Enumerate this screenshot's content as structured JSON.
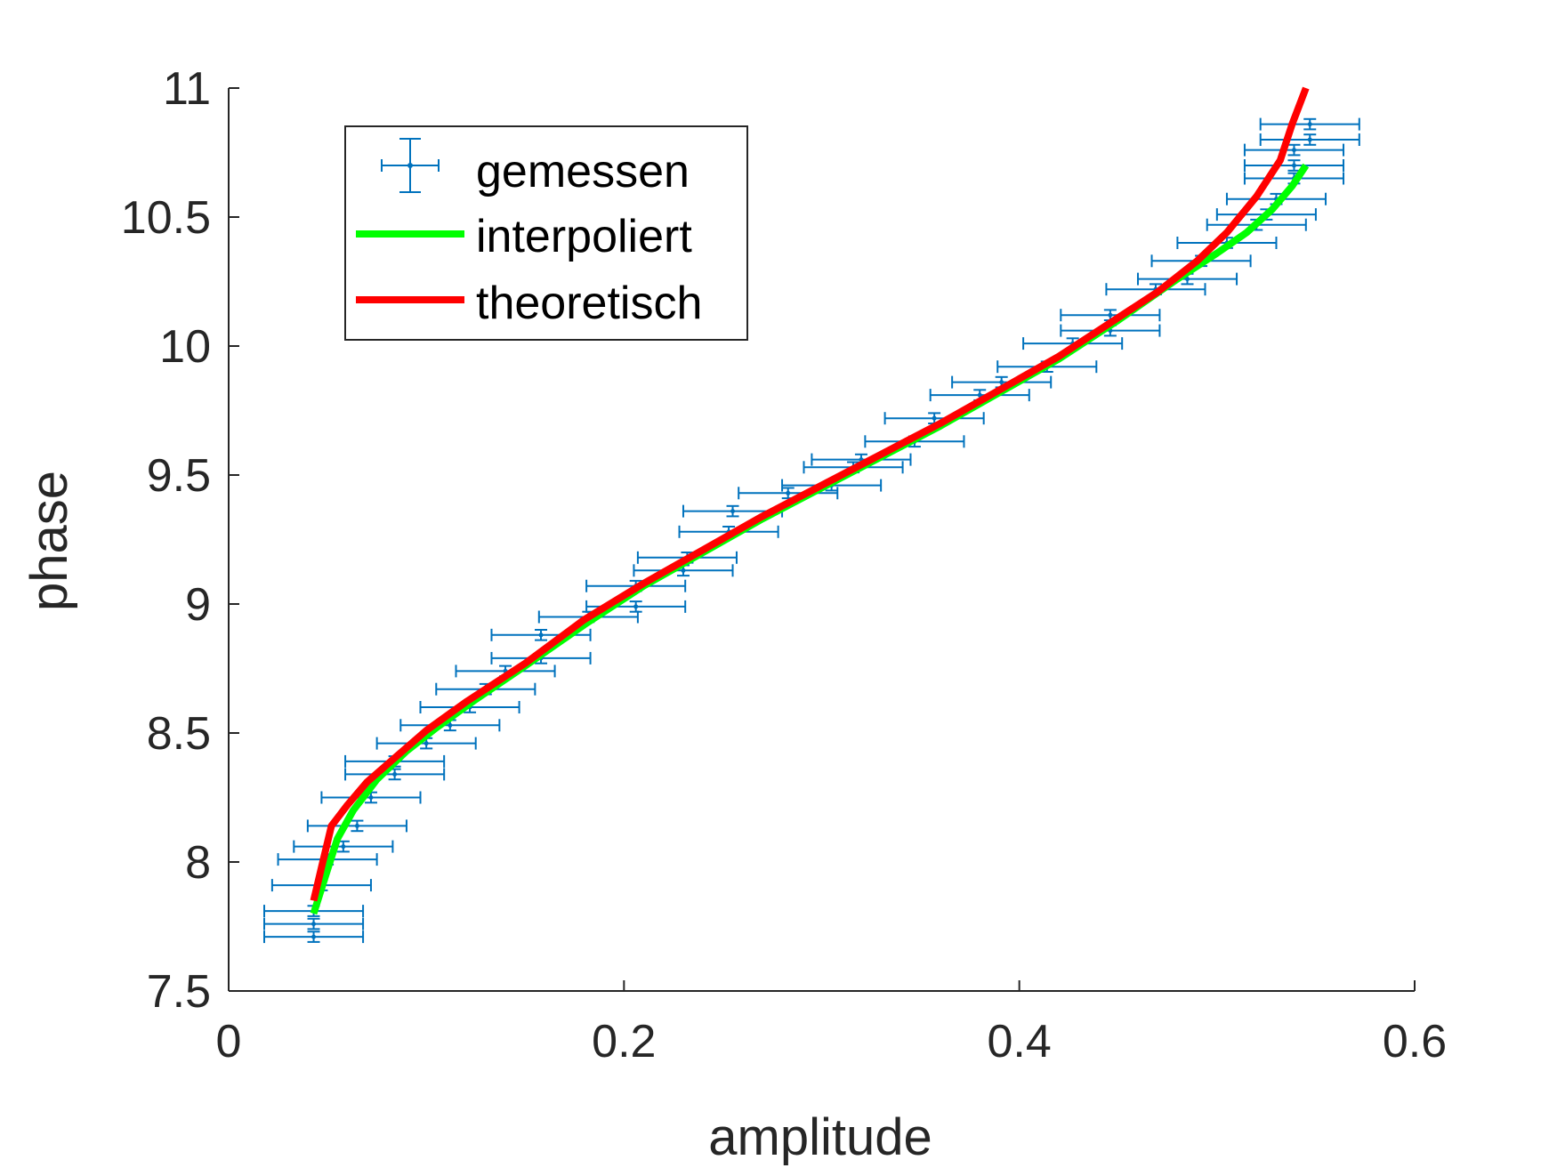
{
  "chart_data": {
    "type": "line",
    "xlabel": "amplitude",
    "ylabel": "phase",
    "xlim": [
      0,
      0.6
    ],
    "ylim": [
      7.5,
      11
    ],
    "xticks": [
      0,
      0.2,
      0.4,
      0.6
    ],
    "xtick_labels": [
      "0",
      "0.2",
      "0.4",
      "0.6"
    ],
    "yticks": [
      7.5,
      8,
      8.5,
      9,
      9.5,
      10,
      10.5,
      11
    ],
    "ytick_labels": [
      "7.5",
      "8",
      "8.5",
      "9",
      "9.5",
      "10",
      "10.5",
      "11"
    ],
    "grid": false,
    "legend_position": "top-left",
    "series": [
      {
        "name": "gemessen",
        "kind": "errorbar",
        "color": "#0072bd",
        "x_error": 0.025,
        "y_error": 0.02,
        "points": [
          [
            0.043,
            7.71
          ],
          [
            0.043,
            7.76
          ],
          [
            0.043,
            7.81
          ],
          [
            0.047,
            7.91
          ],
          [
            0.05,
            8.01
          ],
          [
            0.058,
            8.06
          ],
          [
            0.065,
            8.14
          ],
          [
            0.072,
            8.25
          ],
          [
            0.084,
            8.34
          ],
          [
            0.084,
            8.39
          ],
          [
            0.1,
            8.46
          ],
          [
            0.112,
            8.53
          ],
          [
            0.122,
            8.6
          ],
          [
            0.13,
            8.67
          ],
          [
            0.14,
            8.74
          ],
          [
            0.158,
            8.79
          ],
          [
            0.158,
            8.88
          ],
          [
            0.182,
            8.95
          ],
          [
            0.206,
            8.99
          ],
          [
            0.206,
            9.07
          ],
          [
            0.23,
            9.13
          ],
          [
            0.232,
            9.18
          ],
          [
            0.253,
            9.28
          ],
          [
            0.255,
            9.36
          ],
          [
            0.283,
            9.43
          ],
          [
            0.305,
            9.46
          ],
          [
            0.316,
            9.53
          ],
          [
            0.32,
            9.56
          ],
          [
            0.347,
            9.63
          ],
          [
            0.357,
            9.72
          ],
          [
            0.38,
            9.81
          ],
          [
            0.391,
            9.86
          ],
          [
            0.414,
            9.92
          ],
          [
            0.427,
            10.01
          ],
          [
            0.446,
            10.06
          ],
          [
            0.446,
            10.12
          ],
          [
            0.469,
            10.22
          ],
          [
            0.485,
            10.26
          ],
          [
            0.492,
            10.33
          ],
          [
            0.505,
            10.4
          ],
          [
            0.52,
            10.47
          ],
          [
            0.525,
            10.51
          ],
          [
            0.53,
            10.57
          ],
          [
            0.539,
            10.65
          ],
          [
            0.539,
            10.7
          ],
          [
            0.539,
            10.76
          ],
          [
            0.547,
            10.8
          ],
          [
            0.547,
            10.86
          ]
        ]
      },
      {
        "name": "interpoliert",
        "kind": "line",
        "color": "#00ff00",
        "points": [
          [
            0.043,
            7.8
          ],
          [
            0.05,
            7.97
          ],
          [
            0.055,
            8.09
          ],
          [
            0.063,
            8.2
          ],
          [
            0.075,
            8.32
          ],
          [
            0.09,
            8.43
          ],
          [
            0.105,
            8.52
          ],
          [
            0.125,
            8.63
          ],
          [
            0.15,
            8.76
          ],
          [
            0.18,
            8.92
          ],
          [
            0.21,
            9.07
          ],
          [
            0.24,
            9.2
          ],
          [
            0.27,
            9.33
          ],
          [
            0.3,
            9.45
          ],
          [
            0.33,
            9.57
          ],
          [
            0.36,
            9.69
          ],
          [
            0.39,
            9.82
          ],
          [
            0.42,
            9.95
          ],
          [
            0.45,
            10.1
          ],
          [
            0.48,
            10.26
          ],
          [
            0.5,
            10.36
          ],
          [
            0.515,
            10.44
          ],
          [
            0.528,
            10.53
          ],
          [
            0.538,
            10.62
          ],
          [
            0.545,
            10.7
          ]
        ]
      },
      {
        "name": "theoretisch",
        "kind": "line",
        "color": "#ff0000",
        "points": [
          [
            0.043,
            7.85
          ],
          [
            0.047,
            7.98
          ],
          [
            0.052,
            8.14
          ],
          [
            0.06,
            8.22
          ],
          [
            0.07,
            8.31
          ],
          [
            0.085,
            8.41
          ],
          [
            0.1,
            8.51
          ],
          [
            0.12,
            8.62
          ],
          [
            0.15,
            8.77
          ],
          [
            0.18,
            8.94
          ],
          [
            0.21,
            9.08
          ],
          [
            0.24,
            9.21
          ],
          [
            0.27,
            9.34
          ],
          [
            0.3,
            9.46
          ],
          [
            0.33,
            9.58
          ],
          [
            0.36,
            9.7
          ],
          [
            0.39,
            9.83
          ],
          [
            0.42,
            9.96
          ],
          [
            0.45,
            10.11
          ],
          [
            0.47,
            10.21
          ],
          [
            0.49,
            10.33
          ],
          [
            0.505,
            10.44
          ],
          [
            0.52,
            10.58
          ],
          [
            0.532,
            10.72
          ],
          [
            0.538,
            10.86
          ],
          [
            0.545,
            11.0
          ]
        ]
      }
    ]
  }
}
